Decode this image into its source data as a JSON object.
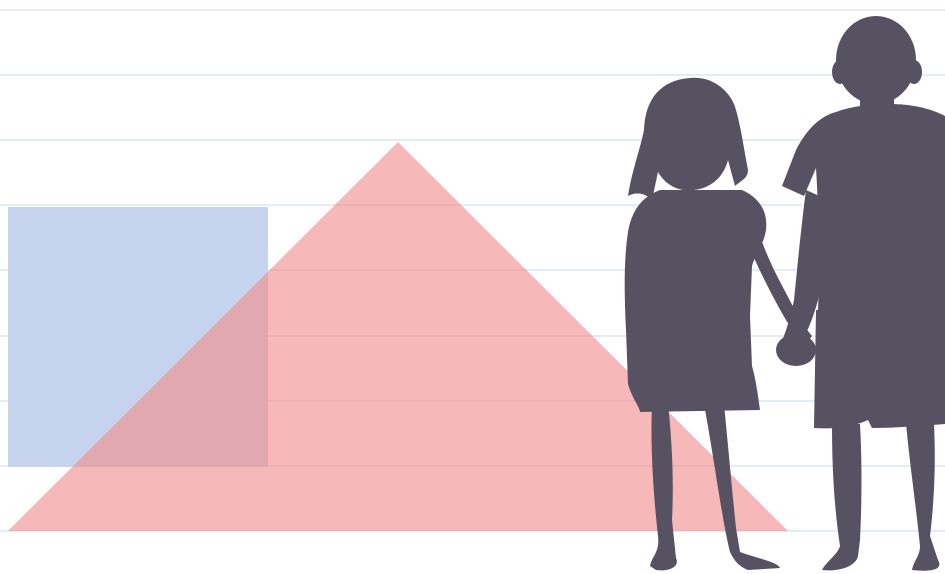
{
  "scene": {
    "description_shapes": [
      {
        "kind": "rectangle",
        "color": "#c7d4ee"
      },
      {
        "kind": "triangle",
        "color": "#f2a5a5"
      }
    ],
    "figures": [
      {
        "kind": "girl-silhouette",
        "color": "#575262"
      },
      {
        "kind": "boy-silhouette",
        "color": "#575262"
      }
    ],
    "colors": {
      "background": "#ffffff",
      "gridline": "#e4ecf6",
      "rectangle_fill": "#c7d4ee",
      "triangle_fill": "#f2a5a5",
      "silhouette": "#575262"
    }
  }
}
